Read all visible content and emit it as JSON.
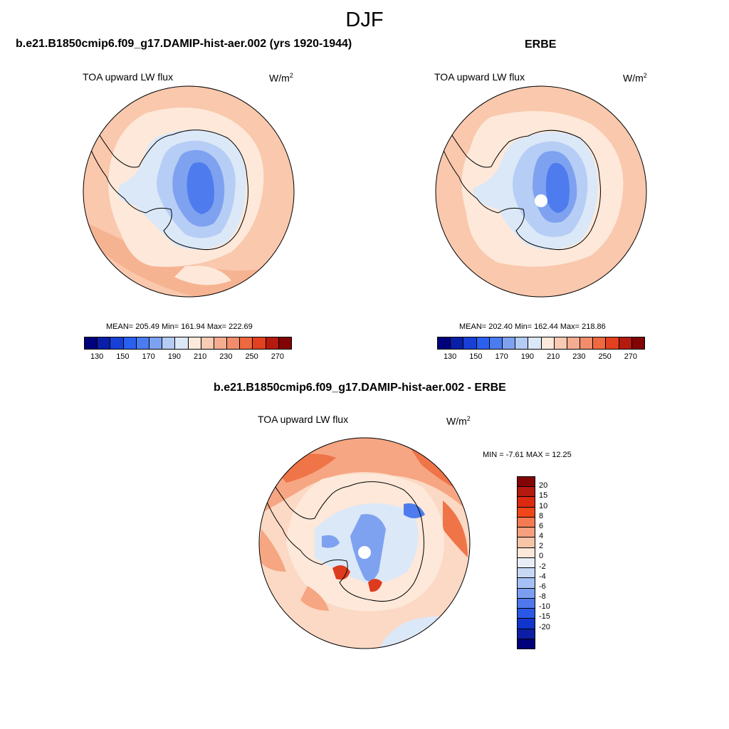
{
  "figure": {
    "title": "DJF"
  },
  "panels": [
    {
      "title": "b.e21.B1850cmip6.f09_g17.DAMIP-hist-aer.002 (yrs 1920-1944)",
      "variable": "TOA upward LW flux",
      "units_base": "W/m",
      "units_exp": "2",
      "stats": "MEAN= 205.49  Min= 161.94  Max= 222.69"
    },
    {
      "title": "ERBE",
      "variable": "TOA upward LW flux",
      "units_base": "W/m",
      "units_exp": "2",
      "stats": "MEAN= 202.40  Min= 162.44  Max= 218.86"
    },
    {
      "title": "b.e21.B1850cmip6.f09_g17.DAMIP-hist-aer.002 - ERBE",
      "variable": "TOA upward LW flux",
      "units_base": "W/m",
      "units_exp": "2",
      "stats": "MIN =  -7.61 MAX =  12.25"
    }
  ],
  "horizontal_colorbar": {
    "colors": [
      "#00007a",
      "#0a1ea8",
      "#1840d6",
      "#2a60f0",
      "#4a7cf0",
      "#7ea2f2",
      "#b4cbf4",
      "#dce8f8",
      "#fde9dc",
      "#f8cbb4",
      "#f6ac90",
      "#f28c6c",
      "#ee6840",
      "#e2401e",
      "#b41a0e",
      "#820404"
    ],
    "ticks": [
      "130",
      "150",
      "170",
      "190",
      "210",
      "230",
      "250",
      "270"
    ]
  },
  "vertical_colorbar": {
    "colors": [
      "#820404",
      "#b41a0e",
      "#dc2a10",
      "#f0461a",
      "#f47a52",
      "#f6a07e",
      "#f8c4a8",
      "#fde7d8",
      "#e8eef8",
      "#c6d8f6",
      "#a4c0f4",
      "#7c9ef2",
      "#4e78ec",
      "#2a58e6",
      "#1034cc",
      "#0c1ea6",
      "#00007a"
    ],
    "ticks": [
      "20",
      "15",
      "10",
      "8",
      "6",
      "4",
      "2",
      "0",
      "-2",
      "-4",
      "-6",
      "-8",
      "-10",
      "-15",
      "-20"
    ]
  },
  "map_colors": {
    "background_warm": "#f9c8ad",
    "light_warm": "#fde8d9",
    "near_zero_blue": "#dbe8f8",
    "blue_1": "#b6cdf5",
    "blue_2": "#7ea2f0",
    "blue_3": "#4e7cee",
    "diff_bg": "#fbd9c4",
    "diff_warm": "#f6a682",
    "diff_hot": "#ef7448",
    "diff_red": "#dd3b1e"
  }
}
